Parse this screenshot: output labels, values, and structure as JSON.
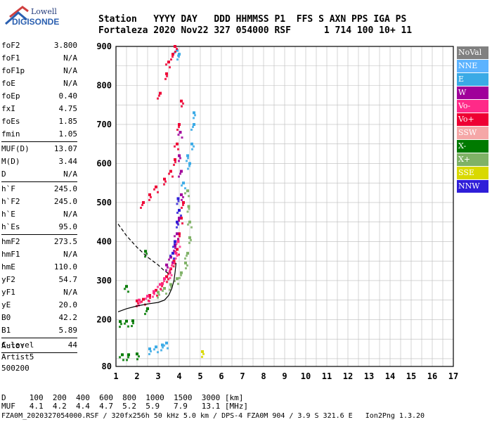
{
  "logo": {
    "line1": "Lowell",
    "line2": "DIGISONDE"
  },
  "header": {
    "line1": "Station   YYYY DAY   DDD HHMMSS P1  FFS S AXN PPS IGA PS",
    "line2": "Fortaleza 2020 Nov22 327 054000 RSF      1 714 100 10+ 11"
  },
  "params": [
    {
      "k": "foF2",
      "v": "3.800"
    },
    {
      "k": "foF1",
      "v": "N/A"
    },
    {
      "k": "foF1p",
      "v": "N/A"
    },
    {
      "k": "foE",
      "v": "N/A"
    },
    {
      "k": "foEp",
      "v": "0.40"
    },
    {
      "k": "fxI",
      "v": "4.75"
    },
    {
      "k": "foEs",
      "v": "1.85"
    },
    {
      "k": "fmin",
      "v": "1.05"
    },
    {
      "k": "MUF(D)",
      "v": "13.07"
    },
    {
      "k": "M(D)",
      "v": "3.44"
    },
    {
      "k": "D",
      "v": "N/A"
    },
    {
      "k": "h`F",
      "v": "245.0"
    },
    {
      "k": "h`F2",
      "v": "245.0"
    },
    {
      "k": "h`E",
      "v": "N/A"
    },
    {
      "k": "h`Es",
      "v": "95.0"
    },
    {
      "k": "hmF2",
      "v": "273.5"
    },
    {
      "k": "hmF1",
      "v": "N/A"
    },
    {
      "k": "hmE",
      "v": "110.0"
    },
    {
      "k": "yF2",
      "v": "54.7"
    },
    {
      "k": "yF1",
      "v": "N/A"
    },
    {
      "k": "yE",
      "v": "20.0"
    },
    {
      "k": "B0",
      "v": "42.2"
    },
    {
      "k": "B1",
      "v": "5.89"
    },
    {
      "k": "C-level",
      "v": "44"
    }
  ],
  "auto": {
    "line1": "Auto:",
    "line2": "Artist5",
    "line3": "500200"
  },
  "legend": [
    {
      "label": "NoVal",
      "color": "#808080"
    },
    {
      "label": "NNE",
      "color": "#5cb3ff"
    },
    {
      "label": "E",
      "color": "#3aaae6"
    },
    {
      "label": "W",
      "color": "#a0009a"
    },
    {
      "label": "Vo-",
      "color": "#ff2a88"
    },
    {
      "label": "Vo+",
      "color": "#ee0033"
    },
    {
      "label": "SSW",
      "color": "#f5a7a7"
    },
    {
      "label": "X-",
      "color": "#007a00"
    },
    {
      "label": "X+",
      "color": "#7fb266"
    },
    {
      "label": "SSE",
      "color": "#d9d900"
    },
    {
      "label": "NNW",
      "color": "#2f1ed8"
    }
  ],
  "muf_table": {
    "line1": "D     100  200  400  600  800  1000  1500  3000 [km]",
    "line2": "MUF   4.1  4.2  4.4  4.7  5.2  5.9   7.9   13.1 [MHz]"
  },
  "footer": "FZA0M_2020327054000.RSF / 320fx256h 50 kHz 5.0 km / DPS-4 FZA0M 904 / 3.9 S 321.6 E   Ion2Png 1.3.20",
  "chart_data": {
    "type": "scatter",
    "xlim": [
      1,
      17
    ],
    "ylim": [
      80,
      900
    ],
    "xticks": [
      "1",
      "2",
      "3",
      "4",
      "5",
      "6",
      "7",
      "8",
      "9",
      "10",
      "11",
      "12",
      "13",
      "14",
      "15",
      "16",
      "17"
    ],
    "yticks": [
      "80",
      "200",
      "300",
      "400",
      "500",
      "600",
      "700",
      "800",
      "900"
    ],
    "grid": true,
    "traces": [
      {
        "name": "Vo+",
        "color": "#ee0033",
        "points": [
          [
            2.0,
            248
          ],
          [
            2.3,
            252
          ],
          [
            2.6,
            262
          ],
          [
            2.9,
            275
          ],
          [
            3.2,
            292
          ],
          [
            3.4,
            310
          ],
          [
            3.6,
            330
          ],
          [
            3.75,
            350
          ],
          [
            3.9,
            380
          ],
          [
            4.0,
            420
          ],
          [
            4.1,
            460
          ],
          [
            4.2,
            500
          ]
        ]
      },
      {
        "name": "Vo-",
        "color": "#ff2a88",
        "points": [
          [
            2.1,
            250
          ],
          [
            2.5,
            260
          ],
          [
            2.8,
            272
          ],
          [
            3.1,
            290
          ],
          [
            3.3,
            305
          ],
          [
            3.55,
            320
          ],
          [
            3.7,
            345
          ],
          [
            3.85,
            370
          ],
          [
            3.95,
            400
          ]
        ]
      },
      {
        "name": "X+",
        "color": "#7fb266",
        "points": [
          [
            3.0,
            270
          ],
          [
            3.3,
            280
          ],
          [
            3.6,
            290
          ],
          [
            3.9,
            305
          ],
          [
            4.1,
            320
          ],
          [
            4.3,
            345
          ],
          [
            4.4,
            370
          ],
          [
            4.5,
            410
          ],
          [
            4.5,
            450
          ],
          [
            4.45,
            490
          ],
          [
            4.4,
            530
          ]
        ]
      },
      {
        "name": "X-",
        "color": "#007a00",
        "points": [
          [
            1.2,
            195
          ],
          [
            1.5,
            196
          ],
          [
            1.8,
            197
          ],
          [
            1.3,
            110
          ],
          [
            1.6,
            110
          ],
          [
            2.0,
            112
          ],
          [
            2.5,
            228
          ],
          [
            2.4,
            375
          ],
          [
            1.5,
            285
          ]
        ]
      },
      {
        "name": "W",
        "color": "#a0009a",
        "points": [
          [
            3.4,
            340
          ],
          [
            3.6,
            360
          ],
          [
            3.8,
            390
          ],
          [
            3.9,
            420
          ],
          [
            4.0,
            460
          ],
          [
            4.1,
            520
          ],
          [
            4.1,
            580
          ],
          [
            4.0,
            620
          ],
          [
            4.05,
            680
          ]
        ]
      },
      {
        "name": "E",
        "color": "#3aaae6",
        "points": [
          [
            2.6,
            125
          ],
          [
            2.9,
            130
          ],
          [
            3.2,
            135
          ],
          [
            3.4,
            140
          ],
          [
            4.5,
            600
          ],
          [
            4.6,
            650
          ],
          [
            4.7,
            700
          ],
          [
            4.7,
            730
          ],
          [
            4.2,
            550
          ],
          [
            4.4,
            620
          ],
          [
            3.9,
            890
          ],
          [
            4.0,
            880
          ]
        ]
      },
      {
        "name": "NNW",
        "color": "#2f1ed8",
        "points": [
          [
            3.9,
            450
          ],
          [
            4.0,
            480
          ],
          [
            3.95,
            510
          ],
          [
            3.7,
            370
          ],
          [
            3.8,
            400
          ]
        ]
      },
      {
        "name": "Vo+ F2 upper",
        "color": "#ee0033",
        "points": [
          [
            3.3,
            560
          ],
          [
            3.6,
            580
          ],
          [
            3.8,
            610
          ],
          [
            3.9,
            650
          ],
          [
            4.0,
            700
          ],
          [
            4.1,
            760
          ],
          [
            2.3,
            500
          ],
          [
            2.6,
            520
          ],
          [
            2.9,
            540
          ],
          [
            3.4,
            830
          ],
          [
            3.5,
            860
          ],
          [
            3.7,
            880
          ],
          [
            3.8,
            900
          ],
          [
            3.1,
            780
          ]
        ]
      },
      {
        "name": "SSE",
        "color": "#d9d900",
        "points": [
          [
            5.1,
            118
          ]
        ]
      }
    ],
    "profile_solid": [
      [
        1.1,
        220
      ],
      [
        1.5,
        228
      ],
      [
        2.0,
        235
      ],
      [
        2.5,
        240
      ],
      [
        3.0,
        244
      ],
      [
        3.3,
        250
      ],
      [
        3.5,
        262
      ],
      [
        3.65,
        280
      ],
      [
        3.75,
        300
      ],
      [
        3.8,
        320
      ],
      [
        3.85,
        345
      ]
    ],
    "profile_dashed": [
      [
        1.1,
        445
      ],
      [
        1.5,
        415
      ],
      [
        2.0,
        385
      ],
      [
        2.5,
        360
      ],
      [
        3.0,
        340
      ],
      [
        3.3,
        325
      ],
      [
        3.5,
        318
      ],
      [
        3.6,
        320
      ]
    ]
  }
}
